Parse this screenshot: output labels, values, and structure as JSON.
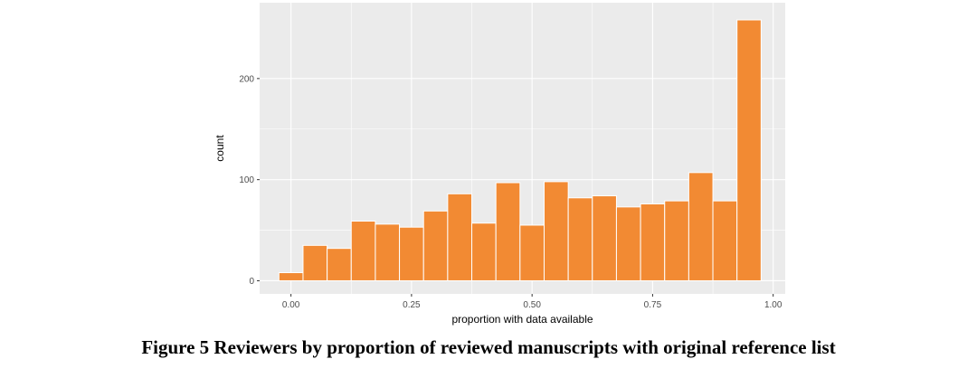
{
  "caption": "Figure 5 Reviewers by proportion of reviewed manuscripts with original reference list",
  "chart_data": {
    "type": "bar",
    "title": "",
    "xlabel": "proportion with data available",
    "ylabel": "count",
    "bins": [
      {
        "x_start": -0.025,
        "x_end": 0.025,
        "count": 8
      },
      {
        "x_start": 0.025,
        "x_end": 0.075,
        "count": 35
      },
      {
        "x_start": 0.075,
        "x_end": 0.125,
        "count": 32
      },
      {
        "x_start": 0.125,
        "x_end": 0.175,
        "count": 59
      },
      {
        "x_start": 0.175,
        "x_end": 0.225,
        "count": 56
      },
      {
        "x_start": 0.225,
        "x_end": 0.275,
        "count": 53
      },
      {
        "x_start": 0.275,
        "x_end": 0.325,
        "count": 69
      },
      {
        "x_start": 0.325,
        "x_end": 0.375,
        "count": 86
      },
      {
        "x_start": 0.375,
        "x_end": 0.425,
        "count": 57
      },
      {
        "x_start": 0.425,
        "x_end": 0.475,
        "count": 97
      },
      {
        "x_start": 0.475,
        "x_end": 0.525,
        "count": 55
      },
      {
        "x_start": 0.525,
        "x_end": 0.575,
        "count": 98
      },
      {
        "x_start": 0.575,
        "x_end": 0.625,
        "count": 82
      },
      {
        "x_start": 0.625,
        "x_end": 0.675,
        "count": 84
      },
      {
        "x_start": 0.675,
        "x_end": 0.725,
        "count": 73
      },
      {
        "x_start": 0.725,
        "x_end": 0.775,
        "count": 76
      },
      {
        "x_start": 0.775,
        "x_end": 0.825,
        "count": 79
      },
      {
        "x_start": 0.825,
        "x_end": 0.875,
        "count": 107
      },
      {
        "x_start": 0.875,
        "x_end": 0.925,
        "count": 79
      },
      {
        "x_start": 0.925,
        "x_end": 0.975,
        "count": 258
      }
    ],
    "x_ticks": [
      {
        "value": 0.0,
        "label": "0.00"
      },
      {
        "value": 0.25,
        "label": "0.25"
      },
      {
        "value": 0.5,
        "label": "0.50"
      },
      {
        "value": 0.75,
        "label": "0.75"
      },
      {
        "value": 1.0,
        "label": "1.00"
      }
    ],
    "y_ticks": [
      {
        "value": 0,
        "label": "0"
      },
      {
        "value": 100,
        "label": "100"
      },
      {
        "value": 200,
        "label": "200"
      }
    ],
    "xlim": [
      -0.065,
      1.025
    ],
    "ylim": [
      -13,
      275
    ],
    "grid": true,
    "bar_color": "#f28a33",
    "panel_color": "#ebebeb",
    "grid_color": "#ffffff"
  }
}
